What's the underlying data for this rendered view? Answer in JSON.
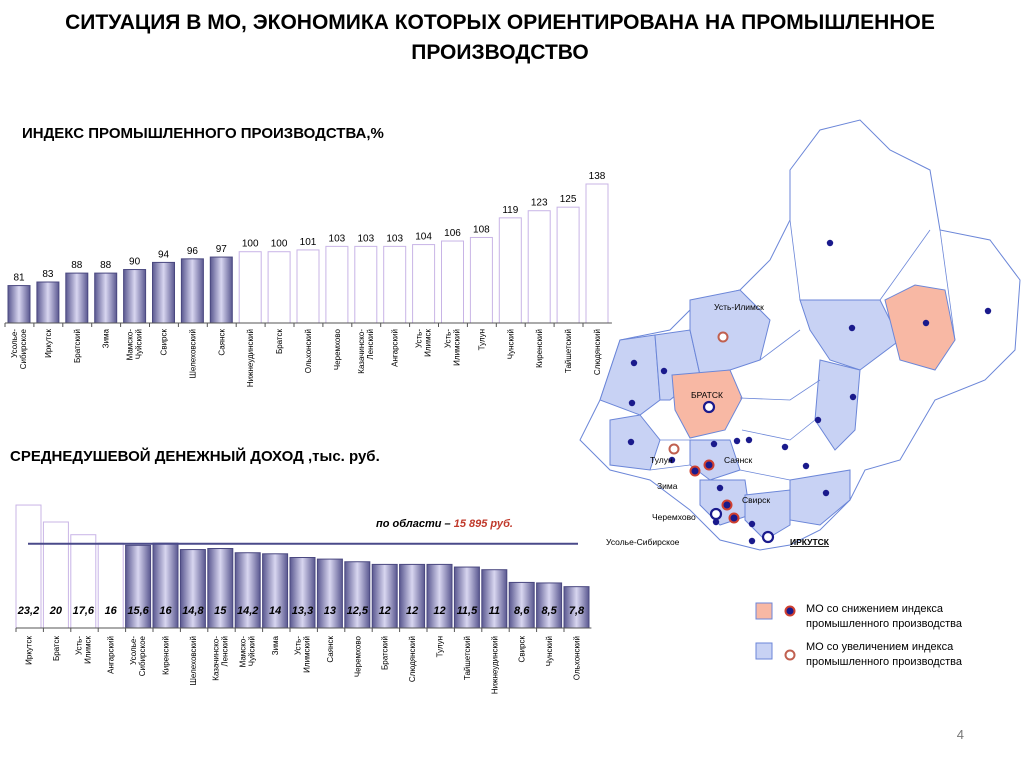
{
  "title": "СИТУАЦИЯ В МО, ЭКОНОМИКА КОТОРЫХ ОРИЕНТИРОВАНА НА ПРОМЫШЛЕННОЕ ПРОИЗВОДСТВО",
  "chart1_title": "ИНДЕКС ПРОМЫШЛЕННОГО ПРОИЗВОДСТВА,%",
  "chart2_title": "СРЕДНЕДУШЕВОЙ ДЕНЕЖНЫЙ ДОХОД ,тыс. руб.",
  "avg_prefix": "по области  –",
  "avg_value": "15  895 руб.",
  "legend": {
    "decrease": "МО со снижением индекса промышленного производства",
    "increase": "МО со увеличением индекса промышленного производства"
  },
  "page_number": "4",
  "colors": {
    "filled": "#8e8cba",
    "outline": "#c8b4e6",
    "avg_line": "#4a4a8a",
    "map_pink": "#f8b8a4",
    "map_blue": "#c8d2f4",
    "dot": "#1a1a8c"
  },
  "map_labels": [
    "Усть-Илимск",
    "БРАТСК",
    "Тулун",
    "Саянск",
    "Зима",
    "Свирск",
    "Черемхово",
    "Усолье-Сибирское",
    "ИРКУТСК"
  ],
  "chart_data": [
    {
      "type": "bar",
      "title": "ИНДЕКС ПРОМЫШЛЕННОГО ПРОИЗВОДСТВА,%",
      "categories": [
        "Усолье-Сибирское",
        "Иркутск",
        "Братский",
        "Зима",
        "Мамско-Чуйский",
        "Свирск",
        "Шелеховский",
        "Саянск",
        "Нижнеудинский",
        "Братск",
        "Ольхонский",
        "Черемхово",
        "Казачинско-Ленский",
        "Ангарский",
        "Усть-Илимск",
        "Усть-Илимский",
        "Тулун",
        "Чунский",
        "Киренский",
        "Тайшетский",
        "Слюдянский"
      ],
      "values": [
        81,
        83,
        88,
        88,
        90,
        94,
        96,
        97,
        100,
        100,
        101,
        103,
        103,
        103,
        104,
        106,
        108,
        119,
        123,
        125,
        138
      ],
      "filled_count": 8
    },
    {
      "type": "bar",
      "title": "СРЕДНЕДУШЕВОЙ ДЕНЕЖНЫЙ ДОХОД ,тыс. руб.",
      "categories": [
        "Иркутск",
        "Братск",
        "Усть-Илимск",
        "Ангарский",
        "Усолье-Сибирское",
        "Киренский",
        "Шелеховский",
        "Казачинско-Ленский",
        "Мамско-Чуйский",
        "Зима",
        "Усть-Илимский",
        "Саянск",
        "Черемхово",
        "Братский",
        "Слюдянский",
        "Тулун",
        "Тайшетский",
        "Нижнеудинский",
        "Свирск",
        "Чунский",
        "Ольхонский"
      ],
      "values": [
        23.2,
        20,
        17.6,
        16,
        15.6,
        16,
        14.8,
        15,
        14.2,
        14,
        13.3,
        13,
        12.5,
        12,
        12,
        12,
        11.5,
        11,
        8.6,
        8.5,
        7.8
      ],
      "value_labels": [
        "23,2",
        "20",
        "17,6",
        "16",
        "15,6",
        "16",
        "14,8",
        "15",
        "14,2",
        "14",
        "13,3",
        "13",
        "12,5",
        "12",
        "12",
        "12",
        "11,5",
        "11",
        "8,6",
        "8,5",
        "7,8"
      ],
      "outlined_count": 4,
      "reference": 15.895
    }
  ]
}
